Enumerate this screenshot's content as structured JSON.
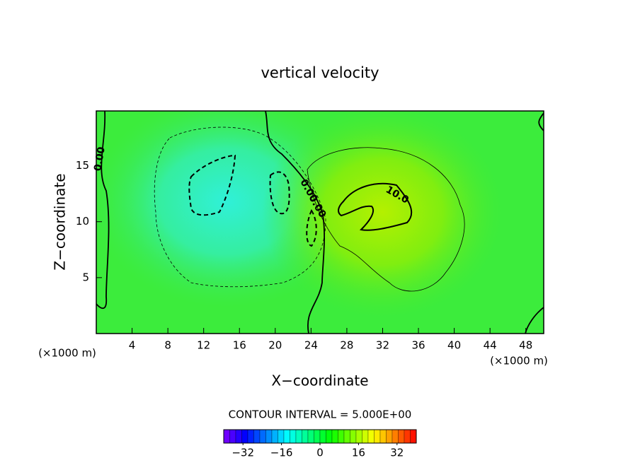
{
  "chart_data": {
    "type": "contour",
    "title": "vertical velocity",
    "x_label": "X−coordinate",
    "y_label": "Z−coordinate",
    "x_unit": "(×1000 m)",
    "y_unit": "(×1000 m)",
    "xlim": [
      0,
      50
    ],
    "xticks": [
      4,
      8,
      12,
      16,
      20,
      24,
      28,
      32,
      36,
      40,
      44,
      48
    ],
    "ylim": [
      0,
      19.9
    ],
    "yticks": [
      5,
      10,
      15
    ],
    "contour_labels": [
      "0.00",
      "0.00",
      "0.00",
      "10.0"
    ],
    "contour_interval_text": "CONTOUR INTERVAL = 5.000E+00",
    "colorbar": {
      "lim": [
        -40,
        40
      ],
      "step": 2.5,
      "ticks": [
        {
          "value": -32,
          "label": "−32"
        },
        {
          "value": -16,
          "label": "−16"
        },
        0,
        16,
        32
      ]
    }
  }
}
